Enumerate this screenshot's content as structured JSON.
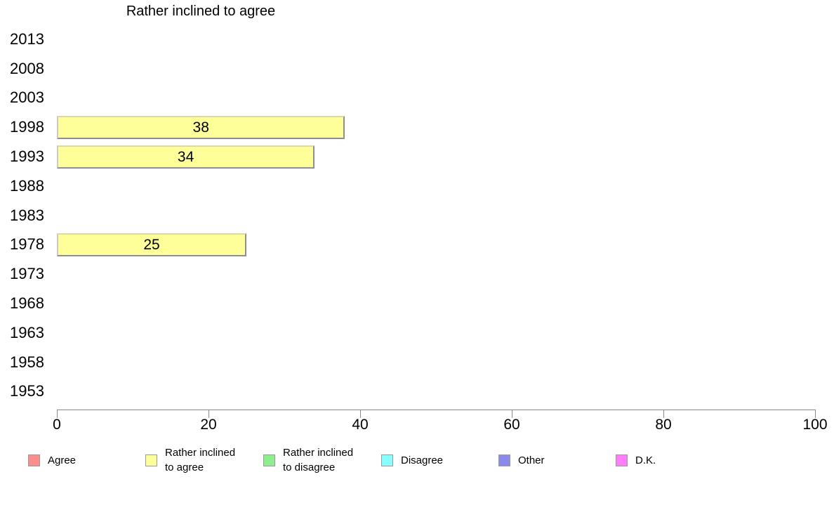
{
  "chart_data": {
    "type": "bar",
    "orientation": "horizontal",
    "title": "Rather inclined to agree",
    "categories": [
      "2013",
      "2008",
      "2003",
      "1998",
      "1993",
      "1988",
      "1983",
      "1978",
      "1973",
      "1968",
      "1963",
      "1958",
      "1953"
    ],
    "values": [
      null,
      null,
      null,
      38,
      34,
      null,
      null,
      25,
      null,
      null,
      null,
      null,
      null
    ],
    "xlabel": "",
    "ylabel": "",
    "xlim": [
      0,
      100
    ],
    "xticks": [
      0,
      20,
      40,
      60,
      80,
      100
    ],
    "grid": false,
    "legend_position": "bottom",
    "bar_color": "#ffff99"
  },
  "colors": {
    "bar_fill": "#ffff99",
    "axis": "#888888"
  },
  "legend": {
    "items": [
      {
        "label": "Agree",
        "color": "#fc8d8d"
      },
      {
        "label": "Rather inclined to agree",
        "color": "#ffff99"
      },
      {
        "label": "Rather inclined to disagree",
        "color": "#8cee8c"
      },
      {
        "label": "Disagree",
        "color": "#88ffff"
      },
      {
        "label": "Other",
        "color": "#8a8aea"
      },
      {
        "label": "D.K.",
        "color": "#ff7dfd"
      }
    ]
  }
}
